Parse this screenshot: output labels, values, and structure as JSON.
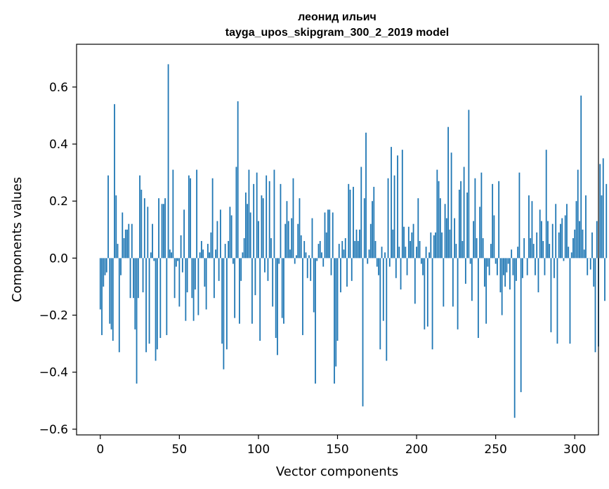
{
  "chart_data": {
    "type": "bar",
    "title_line1": "леонид ильич",
    "title_line2": "tayga_upos_skipgram_300_2_2019 model",
    "xlabel": "Vector components",
    "ylabel": "Components values",
    "xlim": [
      -15,
      315
    ],
    "ylim": [
      -0.62,
      0.75
    ],
    "x_ticks": [
      0,
      50,
      100,
      150,
      200,
      250,
      300
    ],
    "x_tick_labels": [
      "0",
      "50",
      "100",
      "150",
      "200",
      "250",
      "300"
    ],
    "y_ticks": [
      -0.6,
      -0.4,
      -0.2,
      0.0,
      0.2,
      0.4,
      0.6
    ],
    "y_tick_labels": [
      "−0.6",
      "−0.4",
      "−0.2",
      "0.0",
      "0.2",
      "0.4",
      "0.6"
    ],
    "bar_color": "#1f77b4",
    "values": [
      -0.18,
      -0.27,
      -0.1,
      -0.06,
      -0.05,
      0.29,
      -0.23,
      -0.25,
      -0.29,
      0.54,
      0.22,
      0.05,
      -0.33,
      -0.06,
      0.16,
      0.07,
      0.1,
      0.1,
      0.12,
      -0.14,
      0.12,
      -0.14,
      -0.25,
      -0.44,
      -0.14,
      0.29,
      0.24,
      -0.12,
      0.21,
      -0.33,
      0.18,
      -0.3,
      0.02,
      0.12,
      -0.01,
      -0.36,
      -0.32,
      0.21,
      -0.28,
      0.19,
      0.19,
      0.21,
      -0.27,
      0.68,
      0.03,
      0.02,
      0.31,
      -0.14,
      -0.03,
      -0.01,
      -0.17,
      0.08,
      -0.05,
      0.17,
      -0.22,
      -0.12,
      0.29,
      0.28,
      -0.14,
      -0.22,
      -0.11,
      0.31,
      -0.2,
      0.02,
      0.06,
      0.03,
      -0.1,
      -0.18,
      0.05,
      0.02,
      0.09,
      0.28,
      -0.14,
      0.03,
      0.13,
      -0.08,
      0.17,
      -0.3,
      -0.39,
      0.05,
      -0.32,
      0.06,
      0.18,
      0.15,
      -0.02,
      -0.21,
      0.32,
      0.55,
      -0.23,
      -0.08,
      0.02,
      0.07,
      0.23,
      0.19,
      0.31,
      0.16,
      -0.23,
      0.26,
      -0.13,
      0.3,
      0.13,
      -0.29,
      0.22,
      0.21,
      -0.05,
      0.29,
      -0.08,
      0.27,
      0.07,
      -0.17,
      0.31,
      -0.28,
      -0.34,
      -0.02,
      0.26,
      -0.21,
      -0.23,
      0.12,
      0.2,
      0.13,
      0.03,
      0.14,
      0.28,
      -0.02,
      0.01,
      0.12,
      0.21,
      0.08,
      -0.27,
      0.06,
      0.02,
      -0.07,
      0.01,
      -0.08,
      0.14,
      -0.19,
      -0.44,
      -0.01,
      0.05,
      0.06,
      0.02,
      -0.03,
      0.16,
      0.09,
      0.17,
      0.17,
      -0.06,
      0.16,
      -0.44,
      -0.38,
      -0.29,
      0.05,
      -0.12,
      0.06,
      0.03,
      0.07,
      -0.1,
      0.26,
      0.24,
      -0.08,
      0.25,
      0.06,
      0.1,
      0.06,
      0.1,
      0.32,
      -0.52,
      0.21,
      0.44,
      -0.02,
      0.03,
      0.12,
      0.2,
      0.25,
      0.06,
      -0.03,
      -0.06,
      -0.32,
      0.04,
      -0.22,
      0.02,
      -0.36,
      0.28,
      -0.03,
      0.39,
      0.1,
      0.29,
      -0.07,
      0.36,
      0.04,
      -0.11,
      0.38,
      0.11,
      0.04,
      -0.06,
      0.11,
      0.06,
      0.09,
      0.12,
      -0.16,
      0.04,
      0.21,
      0.06,
      -0.02,
      -0.06,
      -0.25,
      0.04,
      -0.24,
      0.02,
      0.09,
      -0.32,
      0.08,
      0.09,
      0.31,
      0.27,
      0.21,
      0.09,
      -0.17,
      0.19,
      0.14,
      0.46,
      0.1,
      0.37,
      -0.17,
      0.14,
      0.05,
      -0.25,
      0.24,
      0.27,
      0.06,
      0.32,
      -0.09,
      0.23,
      0.52,
      -0.02,
      -0.15,
      0.13,
      0.28,
      0.07,
      -0.28,
      0.18,
      0.3,
      0.07,
      -0.1,
      -0.23,
      -0.03,
      -0.06,
      0.05,
      0.26,
      0.15,
      -0.02,
      -0.06,
      0.27,
      -0.12,
      -0.2,
      -0.06,
      -0.1,
      -0.05,
      -0.02,
      -0.11,
      0.03,
      -0.06,
      -0.56,
      -0.08,
      0.04,
      0.3,
      -0.47,
      -0.07,
      0.07,
      0.0,
      -0.06,
      0.22,
      0.07,
      0.2,
      0.05,
      -0.06,
      0.09,
      -0.12,
      0.17,
      0.13,
      0.06,
      -0.06,
      0.38,
      0.13,
      0.05,
      -0.26,
      0.12,
      -0.07,
      0.19,
      -0.3,
      0.09,
      0.12,
      0.14,
      -0.01,
      0.15,
      0.19,
      0.04,
      -0.3,
      0.02,
      0.07,
      0.1,
      0.2,
      0.31,
      0.13,
      0.57,
      0.1,
      0.03,
      0.22,
      -0.06,
      0.0,
      -0.04,
      0.09,
      -0.1,
      -0.33,
      0.13,
      -0.31,
      0.33,
      0.22,
      0.35,
      -0.15,
      0.26
    ],
    "bar_width": 0.8
  }
}
